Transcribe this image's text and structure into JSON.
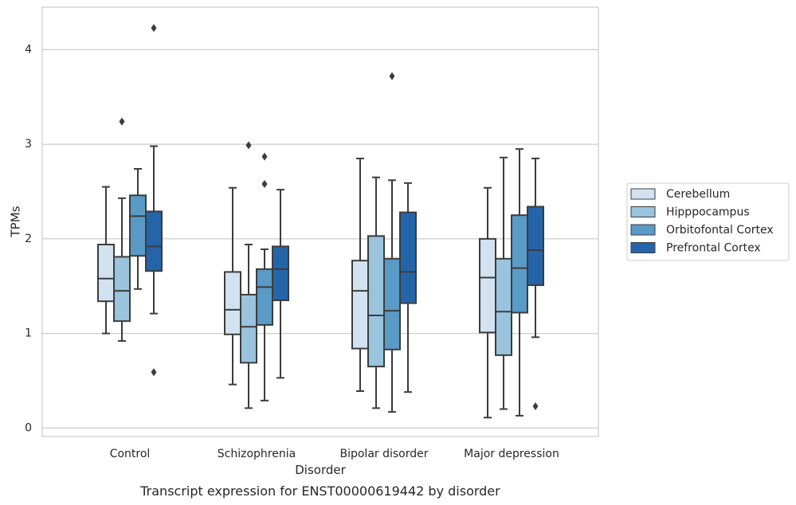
{
  "chart_data": {
    "type": "box",
    "title": "Transcript expression for ENST00000619442 by disorder",
    "xlabel": "Disorder",
    "ylabel": "TPMs",
    "ylim": [
      -0.09,
      4.45
    ],
    "yticks": [
      0,
      1,
      2,
      3,
      4
    ],
    "grid": "horizontal",
    "legend_position": "right",
    "categories": [
      "Control",
      "Schizophrenia",
      "Bipolar disorder",
      "Major depression"
    ],
    "series": [
      {
        "name": "Cerebellum",
        "color": "#d2e2f1",
        "boxes": [
          {
            "whisker_low": 1.0,
            "q1": 1.34,
            "median": 1.58,
            "q3": 1.94,
            "whisker_high": 2.55,
            "outliers": []
          },
          {
            "whisker_low": 0.46,
            "q1": 0.99,
            "median": 1.25,
            "q3": 1.65,
            "whisker_high": 2.54,
            "outliers": []
          },
          {
            "whisker_low": 0.39,
            "q1": 0.84,
            "median": 1.45,
            "q3": 1.77,
            "whisker_high": 2.85,
            "outliers": []
          },
          {
            "whisker_low": 0.11,
            "q1": 1.01,
            "median": 1.59,
            "q3": 2.0,
            "whisker_high": 2.54,
            "outliers": []
          }
        ]
      },
      {
        "name": "Hipppocampus",
        "color": "#9ac3dd",
        "boxes": [
          {
            "whisker_low": 0.92,
            "q1": 1.13,
            "median": 1.45,
            "q3": 1.81,
            "whisker_high": 2.43,
            "outliers": [
              3.24
            ]
          },
          {
            "whisker_low": 0.21,
            "q1": 0.69,
            "median": 1.07,
            "q3": 1.41,
            "whisker_high": 1.94,
            "outliers": [
              2.99
            ]
          },
          {
            "whisker_low": 0.21,
            "q1": 0.65,
            "median": 1.19,
            "q3": 2.03,
            "whisker_high": 2.65,
            "outliers": []
          },
          {
            "whisker_low": 0.2,
            "q1": 0.77,
            "median": 1.23,
            "q3": 1.79,
            "whisker_high": 2.86,
            "outliers": []
          }
        ]
      },
      {
        "name": "Orbitofontal Cortex",
        "color": "#5a9ac6",
        "boxes": [
          {
            "whisker_low": 1.47,
            "q1": 1.82,
            "median": 2.24,
            "q3": 2.46,
            "whisker_high": 2.74,
            "outliers": []
          },
          {
            "whisker_low": 0.29,
            "q1": 1.09,
            "median": 1.49,
            "q3": 1.68,
            "whisker_high": 1.89,
            "outliers": [
              2.87,
              2.58
            ]
          },
          {
            "whisker_low": 0.17,
            "q1": 0.83,
            "median": 1.24,
            "q3": 1.79,
            "whisker_high": 2.62,
            "outliers": [
              3.72
            ]
          },
          {
            "whisker_low": 0.13,
            "q1": 1.22,
            "median": 1.69,
            "q3": 2.25,
            "whisker_high": 2.95,
            "outliers": []
          }
        ]
      },
      {
        "name": "Prefrontal Cortex",
        "color": "#2465a9",
        "boxes": [
          {
            "whisker_low": 1.21,
            "q1": 1.66,
            "median": 1.92,
            "q3": 2.29,
            "whisker_high": 2.98,
            "outliers": [
              4.23,
              0.59
            ]
          },
          {
            "whisker_low": 0.53,
            "q1": 1.35,
            "median": 1.68,
            "q3": 1.92,
            "whisker_high": 2.52,
            "outliers": []
          },
          {
            "whisker_low": 0.38,
            "q1": 1.32,
            "median": 1.65,
            "q3": 2.28,
            "whisker_high": 2.59,
            "outliers": []
          },
          {
            "whisker_low": 0.96,
            "q1": 1.51,
            "median": 1.88,
            "q3": 2.34,
            "whisker_high": 2.85,
            "outliers": [
              0.23
            ]
          }
        ]
      }
    ]
  },
  "style": {
    "grid_color": "#cccccc",
    "frame_color": "#cccccc",
    "line_color": "#3c3c3c",
    "text_color": "#262626"
  }
}
